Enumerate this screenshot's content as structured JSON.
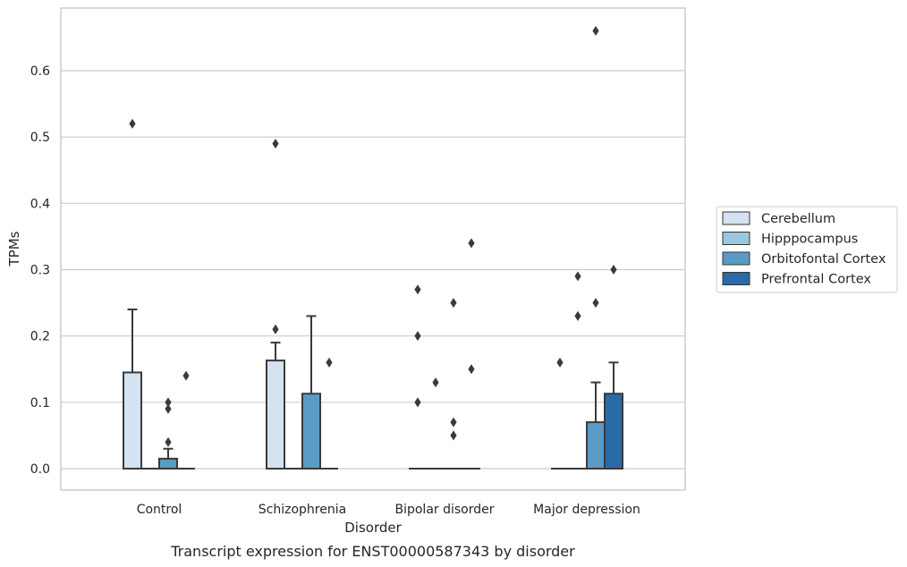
{
  "chart_data": {
    "type": "bar",
    "xlabel": "Disorder",
    "ylabel": "TPMs",
    "caption": "Transcript expression for ENST00000587343 by disorder",
    "categories": [
      "Control",
      "Schizophrenia",
      "Bipolar disorder",
      "Major depression"
    ],
    "ylim": [
      -0.033,
      0.694
    ],
    "yticks": [
      "0.0",
      "0.1",
      "0.2",
      "0.3",
      "0.4",
      "0.5",
      "0.6"
    ],
    "grid": true,
    "legend_position": "right",
    "series": [
      {
        "name": "Cerebellum",
        "color": "#d3e3f2",
        "values": [
          0.145,
          0.163,
          0.0,
          0.0
        ],
        "error_upper": [
          0.24,
          0.19,
          0.0,
          0.0
        ],
        "outliers": [
          [
            0.52
          ],
          [
            0.49,
            0.21
          ],
          [
            0.27,
            0.2,
            0.1
          ],
          [
            0.16
          ]
        ]
      },
      {
        "name": "Hipppocampus",
        "color": "#9ac8e0",
        "values": [
          0.0,
          0.0,
          0.0,
          0.0
        ],
        "error_upper": [
          0.0,
          0.0,
          0.0,
          0.0
        ],
        "outliers": [
          [],
          [],
          [
            0.13
          ],
          [
            0.29,
            0.23
          ]
        ]
      },
      {
        "name": "Orbitofontal Cortex",
        "color": "#5a9bc6",
        "values": [
          0.015,
          0.113,
          0.0,
          0.07
        ],
        "error_upper": [
          0.03,
          0.23,
          0.0,
          0.13
        ],
        "outliers": [
          [
            0.1,
            0.09,
            0.04
          ],
          [],
          [
            0.25,
            0.07,
            0.05
          ],
          [
            0.66,
            0.25
          ]
        ]
      },
      {
        "name": "Prefrontal Cortex",
        "color": "#2a6aa8",
        "values": [
          0.0,
          0.0,
          0.0,
          0.113
        ],
        "error_upper": [
          0.0,
          0.0,
          0.0,
          0.16
        ],
        "outliers": [
          [
            0.14
          ],
          [
            0.16
          ],
          [
            0.34,
            0.15
          ],
          [
            0.3
          ]
        ]
      }
    ]
  }
}
